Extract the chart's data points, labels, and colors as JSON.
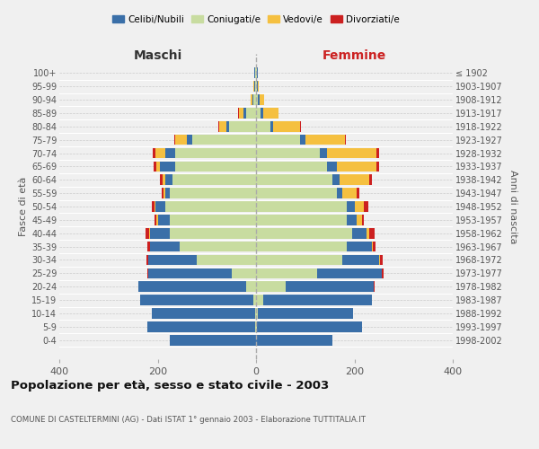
{
  "age_groups": [
    "0-4",
    "5-9",
    "10-14",
    "15-19",
    "20-24",
    "25-29",
    "30-34",
    "35-39",
    "40-44",
    "45-49",
    "50-54",
    "55-59",
    "60-64",
    "65-69",
    "70-74",
    "75-79",
    "80-84",
    "85-89",
    "90-94",
    "95-99",
    "100+"
  ],
  "birth_years": [
    "1998-2002",
    "1993-1997",
    "1988-1992",
    "1983-1987",
    "1978-1982",
    "1973-1977",
    "1968-1972",
    "1963-1967",
    "1958-1962",
    "1953-1957",
    "1948-1952",
    "1943-1947",
    "1938-1942",
    "1933-1937",
    "1928-1932",
    "1923-1927",
    "1918-1922",
    "1913-1917",
    "1908-1912",
    "1903-1907",
    "≤ 1902"
  ],
  "males": {
    "celibi": [
      175,
      220,
      210,
      230,
      220,
      170,
      100,
      60,
      40,
      25,
      20,
      10,
      15,
      30,
      20,
      10,
      5,
      5,
      3,
      2,
      2
    ],
    "coniugati": [
      0,
      1,
      2,
      5,
      20,
      50,
      120,
      155,
      175,
      175,
      185,
      175,
      170,
      165,
      165,
      130,
      55,
      20,
      5,
      2,
      1
    ],
    "vedovi": [
      0,
      0,
      0,
      0,
      0,
      0,
      0,
      1,
      2,
      2,
      2,
      3,
      5,
      8,
      20,
      25,
      15,
      10,
      3,
      1,
      0
    ],
    "divorziati": [
      0,
      0,
      0,
      0,
      0,
      1,
      3,
      5,
      8,
      5,
      4,
      3,
      5,
      6,
      5,
      2,
      1,
      1,
      0,
      0,
      0
    ]
  },
  "females": {
    "nubili": [
      155,
      215,
      195,
      220,
      180,
      130,
      75,
      50,
      30,
      20,
      15,
      10,
      15,
      20,
      15,
      10,
      5,
      5,
      4,
      2,
      2
    ],
    "coniugate": [
      0,
      1,
      3,
      15,
      60,
      125,
      175,
      185,
      195,
      185,
      185,
      165,
      155,
      145,
      130,
      90,
      30,
      10,
      3,
      1,
      1
    ],
    "vedove": [
      0,
      0,
      0,
      0,
      0,
      1,
      2,
      3,
      5,
      10,
      20,
      30,
      60,
      80,
      100,
      80,
      55,
      30,
      10,
      3,
      1
    ],
    "divorziate": [
      0,
      0,
      0,
      0,
      2,
      4,
      5,
      5,
      12,
      5,
      8,
      5,
      5,
      5,
      5,
      2,
      1,
      1,
      0,
      0,
      0
    ]
  },
  "colors": {
    "celibi": "#3a6fa8",
    "coniugati": "#c8dca0",
    "vedovi": "#f5c040",
    "divorziati": "#cc2020"
  },
  "title": "Popolazione per età, sesso e stato civile - 2003",
  "subtitle": "COMUNE DI CASTELTERMINI (AG) - Dati ISTAT 1° gennaio 2003 - Elaborazione TUTTITALIA.IT",
  "xlabel_left": "Maschi",
  "xlabel_right": "Femmine",
  "ylabel_left": "Fasce di età",
  "ylabel_right": "Anni di nascita",
  "legend_labels": [
    "Celibi/Nubili",
    "Coniugati/e",
    "Vedovi/e",
    "Divorziati/e"
  ],
  "xlim": 400,
  "background_color": "#f0f0f0"
}
